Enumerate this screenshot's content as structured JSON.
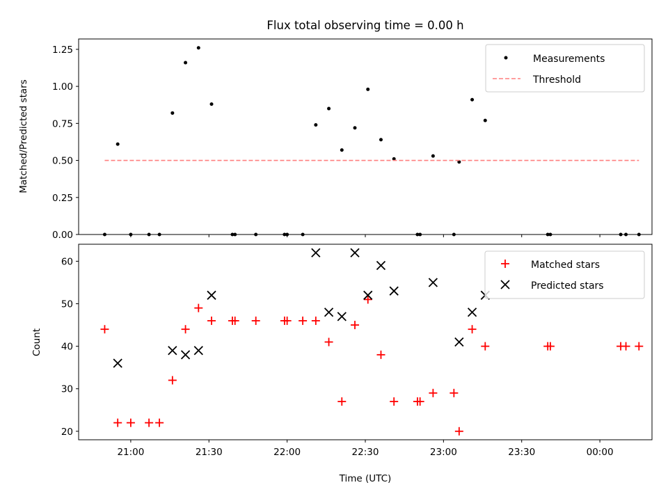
{
  "chart_data": [
    {
      "type": "scatter",
      "title": "Flux total observing time = 0.00 h",
      "xlabel": "",
      "ylabel": "Matched/Predicted stars",
      "xlim": [
        "20:40",
        "00:20"
      ],
      "ylim": [
        0,
        1.32
      ],
      "yticks": [
        0.0,
        0.25,
        0.5,
        0.75,
        1.0,
        1.25
      ],
      "ytick_labels": [
        "0.00",
        "0.25",
        "0.50",
        "0.75",
        "1.00",
        "1.25"
      ],
      "legend_position": "upper right",
      "grid": false,
      "series": [
        {
          "name": "Measurements",
          "marker": "dot",
          "color": "#000000",
          "x": [
            "20:50",
            "20:55",
            "21:00",
            "21:07",
            "21:11",
            "21:16",
            "21:21",
            "21:26",
            "21:31",
            "21:39",
            "21:40",
            "21:48",
            "21:59",
            "22:00",
            "22:06",
            "22:11",
            "22:16",
            "22:21",
            "22:26",
            "22:31",
            "22:36",
            "22:41",
            "22:50",
            "22:51",
            "22:56",
            "23:04",
            "23:06",
            "23:11",
            "23:16",
            "23:40",
            "23:41",
            "00:08",
            "00:10",
            "00:15"
          ],
          "y": [
            0,
            0.61,
            0,
            0,
            0,
            0.82,
            1.16,
            1.26,
            0.88,
            0,
            0,
            0,
            0,
            0,
            0,
            0.74,
            0.85,
            0.57,
            0.72,
            0.98,
            0.64,
            0.51,
            0,
            0,
            0.53,
            0,
            0.49,
            0.91,
            0.77,
            0,
            0,
            0,
            0,
            0
          ]
        },
        {
          "name": "Threshold",
          "style": "dashed",
          "color": "#ff7f7f",
          "x": [
            "20:50",
            "00:15"
          ],
          "y": [
            0.5,
            0.5
          ]
        }
      ]
    },
    {
      "type": "scatter",
      "title": "",
      "xlabel": "Time (UTC)",
      "ylabel": "Count",
      "xlim": [
        "20:40",
        "00:20"
      ],
      "ylim": [
        18,
        64
      ],
      "yticks": [
        20,
        30,
        40,
        50,
        60
      ],
      "ytick_labels": [
        "20",
        "30",
        "40",
        "50",
        "60"
      ],
      "xticks": [
        "21:00",
        "21:30",
        "22:00",
        "22:30",
        "23:00",
        "23:30",
        "00:00"
      ],
      "legend_position": "upper right",
      "grid": false,
      "series": [
        {
          "name": "Matched stars",
          "marker": "plus",
          "color": "#ff0000",
          "x": [
            "20:50",
            "20:55",
            "21:00",
            "21:07",
            "21:11",
            "21:16",
            "21:21",
            "21:26",
            "21:31",
            "21:39",
            "21:40",
            "21:48",
            "21:59",
            "22:00",
            "22:06",
            "22:11",
            "22:16",
            "22:21",
            "22:26",
            "22:31",
            "22:36",
            "22:41",
            "22:50",
            "22:51",
            "22:56",
            "23:04",
            "23:06",
            "23:11",
            "23:16",
            "23:40",
            "23:41",
            "00:08",
            "00:10",
            "00:15"
          ],
          "y": [
            44,
            22,
            22,
            22,
            22,
            32,
            44,
            49,
            46,
            46,
            46,
            46,
            46,
            46,
            46,
            46,
            41,
            27,
            45,
            51,
            38,
            27,
            27,
            27,
            29,
            29,
            20,
            44,
            40,
            40,
            40,
            40,
            40,
            40
          ]
        },
        {
          "name": "Predicted stars",
          "marker": "x",
          "color": "#000000",
          "x": [
            "20:55",
            "21:16",
            "21:21",
            "21:26",
            "21:31",
            "22:11",
            "22:16",
            "22:21",
            "22:26",
            "22:31",
            "22:36",
            "22:41",
            "22:56",
            "23:06",
            "23:11",
            "23:16"
          ],
          "y": [
            36,
            39,
            38,
            39,
            52,
            62,
            48,
            47,
            62,
            52,
            59,
            53,
            55,
            41,
            48,
            52
          ]
        }
      ]
    }
  ]
}
